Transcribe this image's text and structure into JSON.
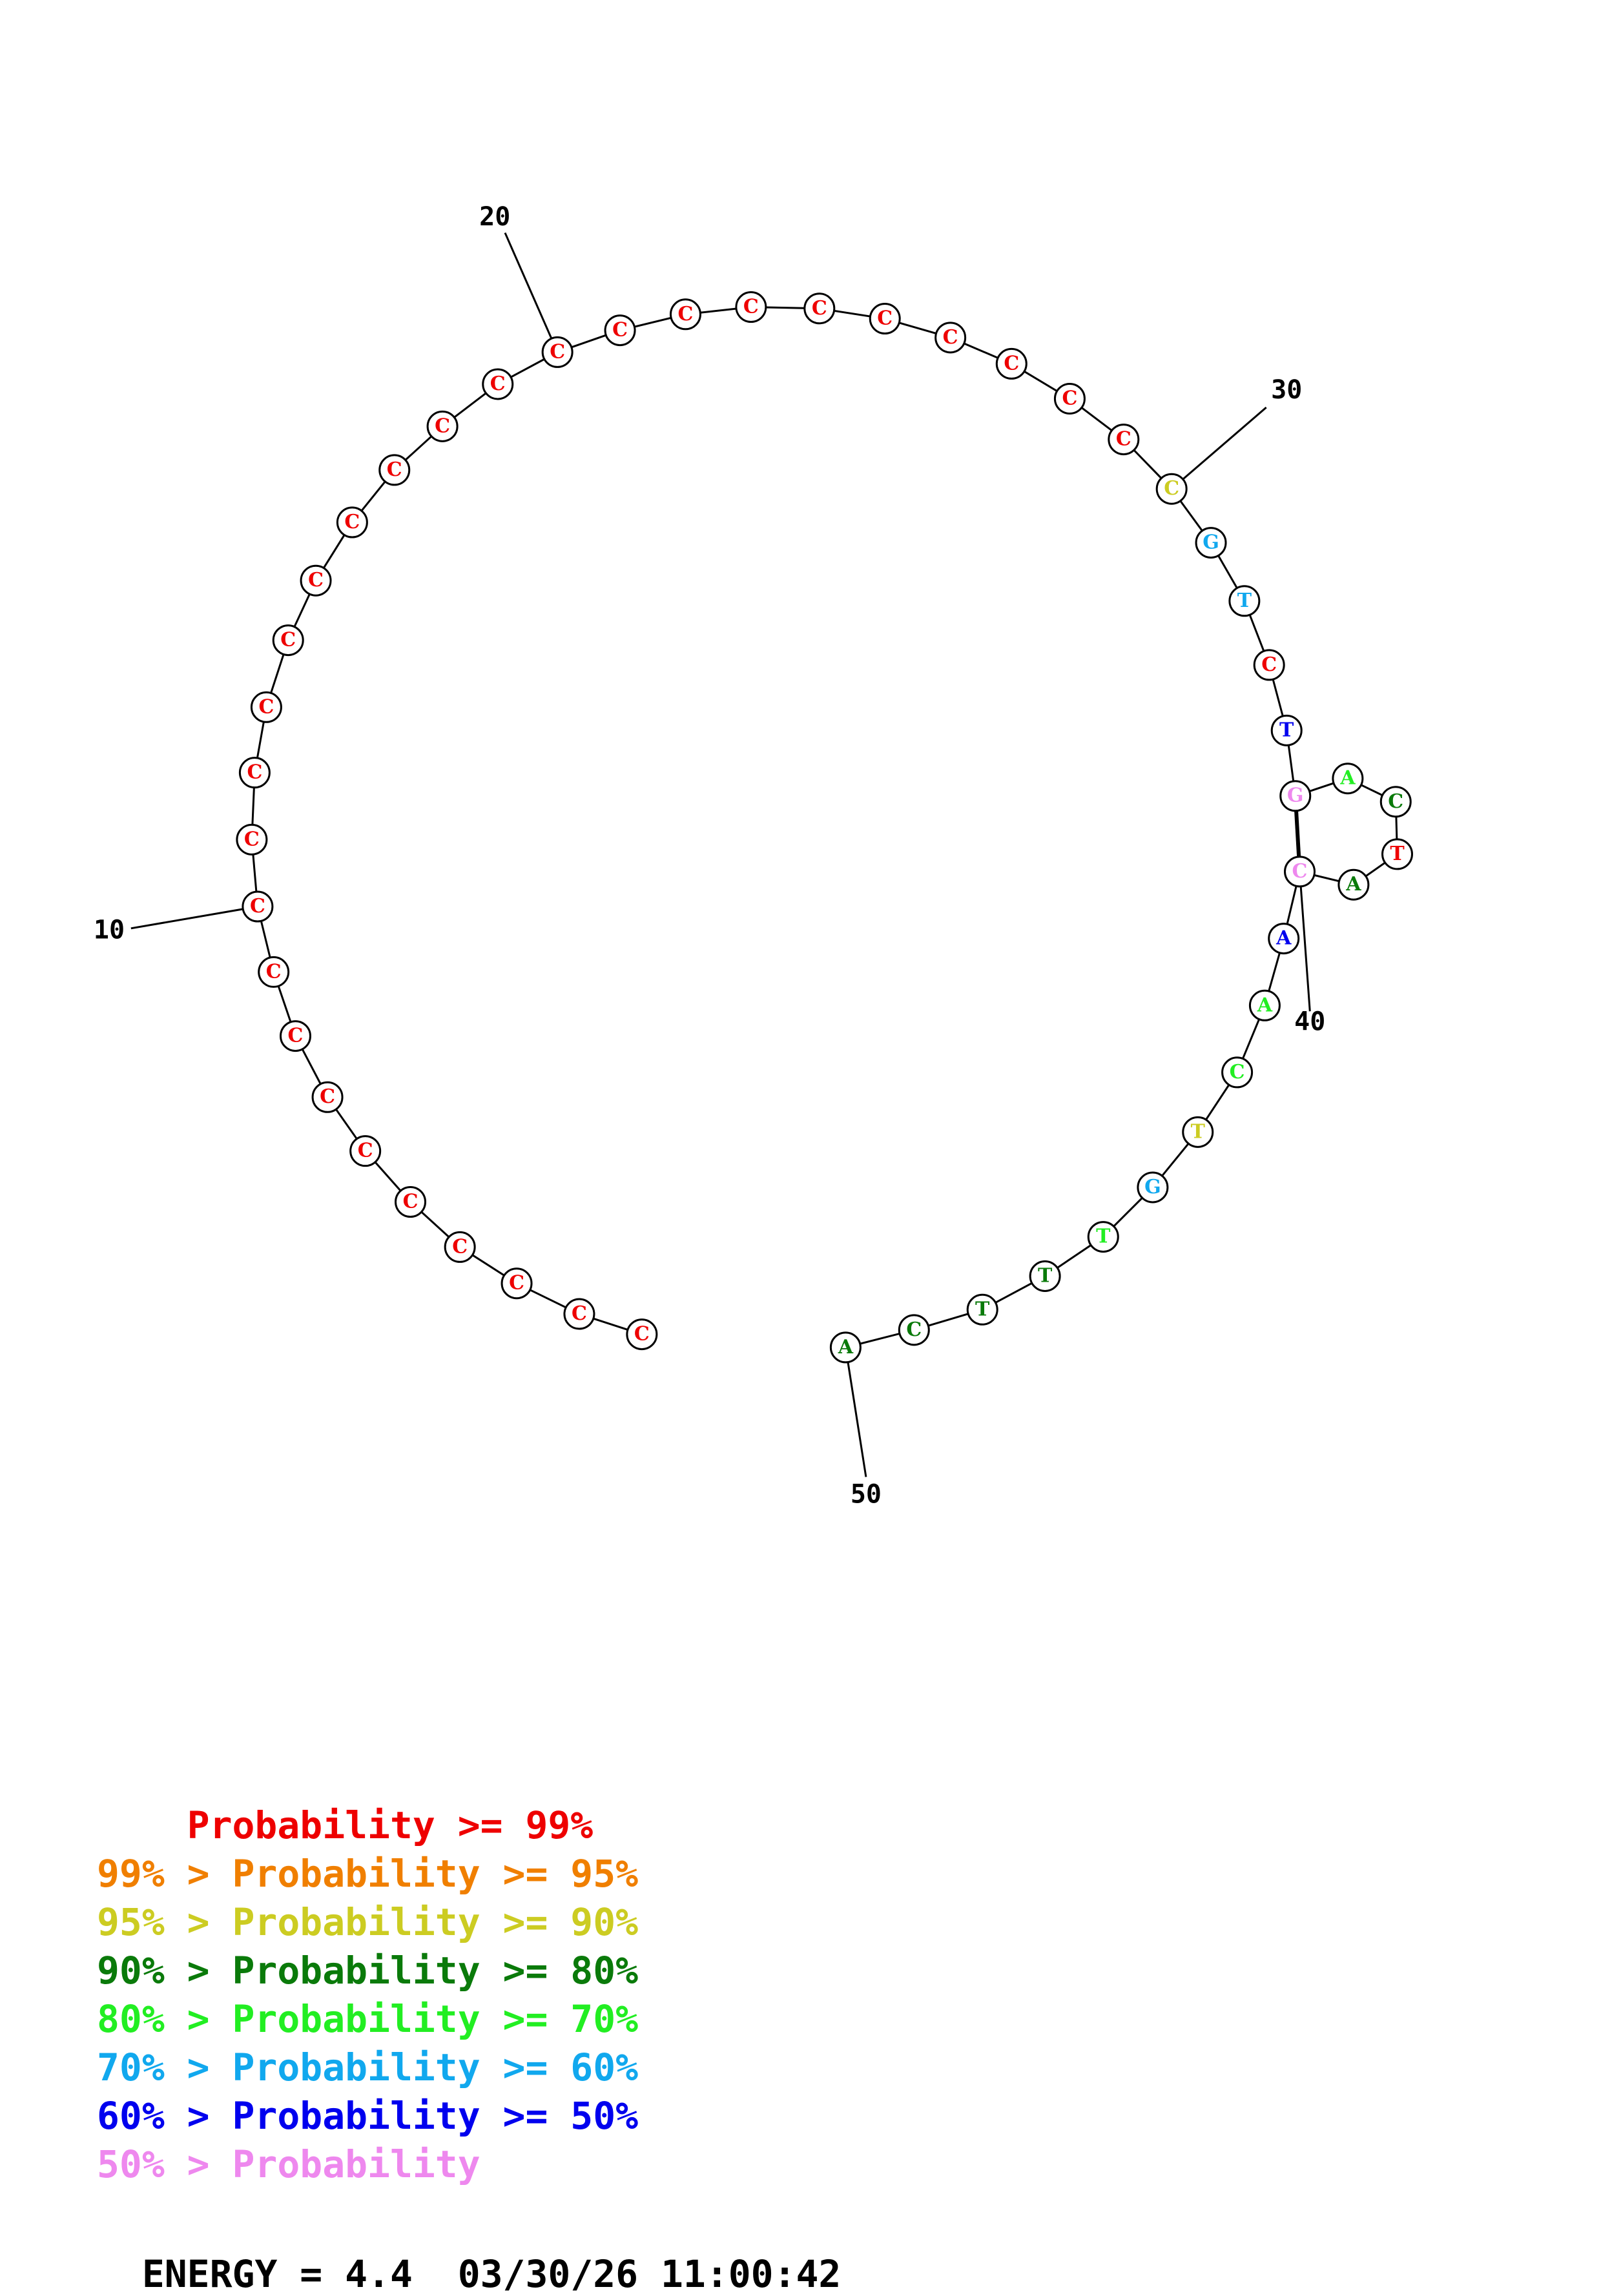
{
  "colors": {
    "red": "#ee0000",
    "orange": "#f07f00",
    "yellow": "#cccc22",
    "dark_green": "#0a7a0a",
    "green": "#22ee22",
    "cyan": "#11a8ee",
    "blue": "#0000ee",
    "pink": "#ee88ee"
  },
  "nucleotides": [
    {
      "n": 1,
      "base": "C",
      "color": "red"
    },
    {
      "n": 2,
      "base": "C",
      "color": "red"
    },
    {
      "n": 3,
      "base": "C",
      "color": "red"
    },
    {
      "n": 4,
      "base": "C",
      "color": "red"
    },
    {
      "n": 5,
      "base": "C",
      "color": "red"
    },
    {
      "n": 6,
      "base": "C",
      "color": "red"
    },
    {
      "n": 7,
      "base": "C",
      "color": "red"
    },
    {
      "n": 8,
      "base": "C",
      "color": "red"
    },
    {
      "n": 9,
      "base": "C",
      "color": "red"
    },
    {
      "n": 10,
      "base": "C",
      "color": "red"
    },
    {
      "n": 11,
      "base": "C",
      "color": "red"
    },
    {
      "n": 12,
      "base": "C",
      "color": "red"
    },
    {
      "n": 13,
      "base": "C",
      "color": "red"
    },
    {
      "n": 14,
      "base": "C",
      "color": "red"
    },
    {
      "n": 15,
      "base": "C",
      "color": "red"
    },
    {
      "n": 16,
      "base": "C",
      "color": "red"
    },
    {
      "n": 17,
      "base": "C",
      "color": "red"
    },
    {
      "n": 18,
      "base": "C",
      "color": "red"
    },
    {
      "n": 19,
      "base": "C",
      "color": "red"
    },
    {
      "n": 20,
      "base": "C",
      "color": "red"
    },
    {
      "n": 21,
      "base": "C",
      "color": "red"
    },
    {
      "n": 22,
      "base": "C",
      "color": "red"
    },
    {
      "n": 23,
      "base": "C",
      "color": "red"
    },
    {
      "n": 24,
      "base": "C",
      "color": "red"
    },
    {
      "n": 25,
      "base": "C",
      "color": "red"
    },
    {
      "n": 26,
      "base": "C",
      "color": "red"
    },
    {
      "n": 27,
      "base": "C",
      "color": "red"
    },
    {
      "n": 28,
      "base": "C",
      "color": "red"
    },
    {
      "n": 29,
      "base": "C",
      "color": "red"
    },
    {
      "n": 30,
      "base": "C",
      "color": "yellow"
    },
    {
      "n": 31,
      "base": "G",
      "color": "cyan"
    },
    {
      "n": 32,
      "base": "T",
      "color": "cyan"
    },
    {
      "n": 33,
      "base": "C",
      "color": "red"
    },
    {
      "n": 34,
      "base": "T",
      "color": "blue"
    },
    {
      "n": 35,
      "base": "G",
      "color": "pink"
    },
    {
      "n": 36,
      "base": "A",
      "color": "green"
    },
    {
      "n": 37,
      "base": "C",
      "color": "dark_green"
    },
    {
      "n": 38,
      "base": "T",
      "color": "red"
    },
    {
      "n": 39,
      "base": "A",
      "color": "dark_green"
    },
    {
      "n": 40,
      "base": "C",
      "color": "pink"
    },
    {
      "n": 41,
      "base": "A",
      "color": "blue"
    },
    {
      "n": 42,
      "base": "A",
      "color": "green"
    },
    {
      "n": 43,
      "base": "C",
      "color": "green"
    },
    {
      "n": 44,
      "base": "T",
      "color": "yellow"
    },
    {
      "n": 45,
      "base": "G",
      "color": "cyan"
    },
    {
      "n": 46,
      "base": "T",
      "color": "green"
    },
    {
      "n": 47,
      "base": "T",
      "color": "dark_green"
    },
    {
      "n": 48,
      "base": "T",
      "color": "dark_green"
    },
    {
      "n": 49,
      "base": "C",
      "color": "dark_green"
    },
    {
      "n": 50,
      "base": "A",
      "color": "dark_green"
    }
  ],
  "base_pairs": [
    [
      35,
      40
    ]
  ],
  "position_labels": [
    {
      "n": 10,
      "text": "10"
    },
    {
      "n": 20,
      "text": "20"
    },
    {
      "n": 30,
      "text": "30"
    },
    {
      "n": 40,
      "text": "40"
    },
    {
      "n": 50,
      "text": "50"
    }
  ],
  "legend": [
    {
      "prefix": "    ",
      "text": "Probability >= 99%",
      "color": "red"
    },
    {
      "prefix": "99% > ",
      "text": "Probability >= 95%",
      "color": "orange"
    },
    {
      "prefix": "95% > ",
      "text": "Probability >= 90%",
      "color": "yellow"
    },
    {
      "prefix": "90% > ",
      "text": "Probability >= 80%",
      "color": "dark_green"
    },
    {
      "prefix": "80% > ",
      "text": "Probability >= 70%",
      "color": "green"
    },
    {
      "prefix": "70% > ",
      "text": "Probability >= 60%",
      "color": "cyan"
    },
    {
      "prefix": "60% > ",
      "text": "Probability >= 50%",
      "color": "blue"
    },
    {
      "prefix": "50% > ",
      "text": "Probability",
      "color": "pink"
    }
  ],
  "energy": {
    "label": "ENERGY = 4.4",
    "timestamp": "03/30/26 11:00:42"
  }
}
